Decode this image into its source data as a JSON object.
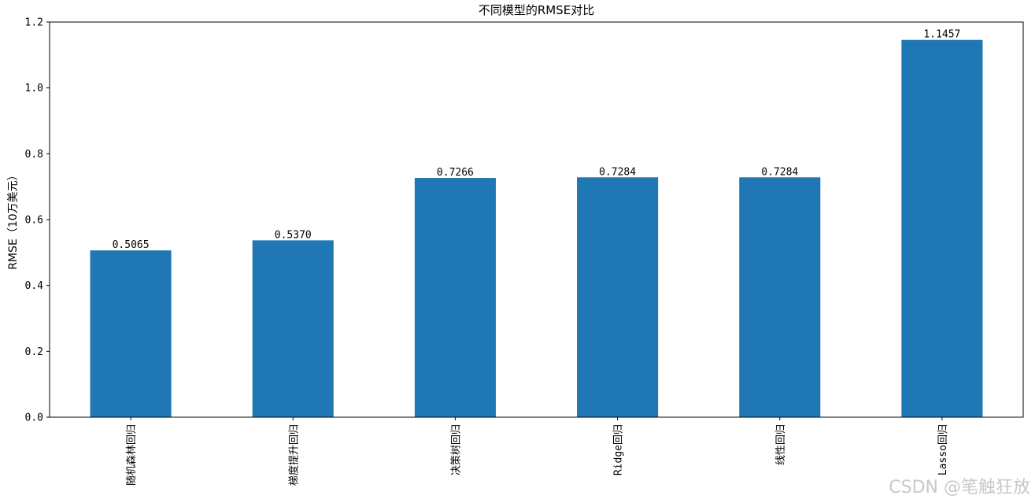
{
  "chart_data": {
    "type": "bar",
    "title": "不同模型的RMSE对比",
    "xlabel": "",
    "ylabel": "RMSE（10万美元）",
    "categories": [
      "随机森林回归",
      "梯度提升回归",
      "决策树回归",
      "Ridge回归",
      "线性回归",
      "Lasso回归"
    ],
    "values": [
      0.5065,
      0.537,
      0.7266,
      0.7284,
      0.7284,
      1.1457
    ],
    "value_labels": [
      "0.5065",
      "0.5370",
      "0.7266",
      "0.7284",
      "0.7284",
      "1.1457"
    ],
    "ylim": [
      0,
      1.2
    ],
    "yticks": [
      0.0,
      0.2,
      0.4,
      0.6,
      0.8,
      1.0,
      1.2
    ],
    "ytick_labels": [
      "0.0",
      "0.2",
      "0.4",
      "0.6",
      "0.8",
      "1.0",
      "1.2"
    ],
    "grid": false,
    "bar_color": "#1f77b4"
  },
  "watermark": "CSDN @笔触狂放"
}
